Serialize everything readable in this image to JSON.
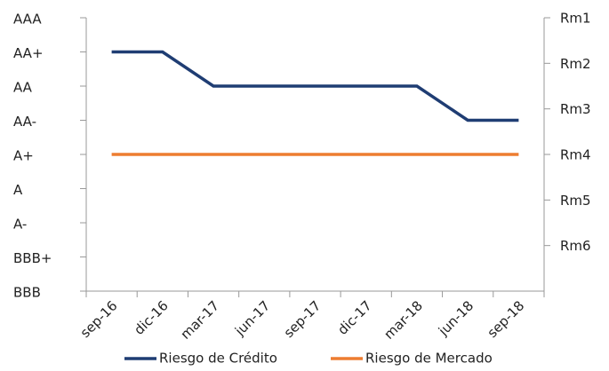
{
  "chart_data": {
    "type": "line",
    "categories": [
      "sep-16",
      "dic-16",
      "mar-17",
      "jun-17",
      "sep-17",
      "dic-17",
      "mar-18",
      "jun-18",
      "sep-18"
    ],
    "series": [
      {
        "name": "Riesgo de Crédito",
        "color": "#1f3d73",
        "values": [
          8,
          8,
          7,
          7,
          7,
          7,
          7,
          6,
          6
        ]
      },
      {
        "name": "Riesgo de Mercado",
        "color": "#ed7d31",
        "axis": "y2",
        "values": [
          4,
          4,
          4,
          4,
          4,
          4,
          4,
          4,
          4
        ]
      }
    ],
    "ylim": [
      1,
      9
    ],
    "yticks": [
      {
        "value": 9,
        "label": "AAA"
      },
      {
        "value": 8,
        "label": "AA+"
      },
      {
        "value": 7,
        "label": "AA"
      },
      {
        "value": 6,
        "label": "AA-"
      },
      {
        "value": 5,
        "label": "A+"
      },
      {
        "value": 4,
        "label": "A"
      },
      {
        "value": 3,
        "label": "A-"
      },
      {
        "value": 2,
        "label": "BBB+"
      },
      {
        "value": 1,
        "label": "BBB"
      }
    ],
    "y2lim": [
      7,
      1
    ],
    "y2ticks": [
      {
        "value": 1,
        "label": "Rm1"
      },
      {
        "value": 2,
        "label": "Rm2"
      },
      {
        "value": 3,
        "label": "Rm3"
      },
      {
        "value": 4,
        "label": "Rm4"
      },
      {
        "value": 5,
        "label": "Rm5"
      },
      {
        "value": 6,
        "label": "Rm6"
      }
    ],
    "legend": "bottom"
  }
}
